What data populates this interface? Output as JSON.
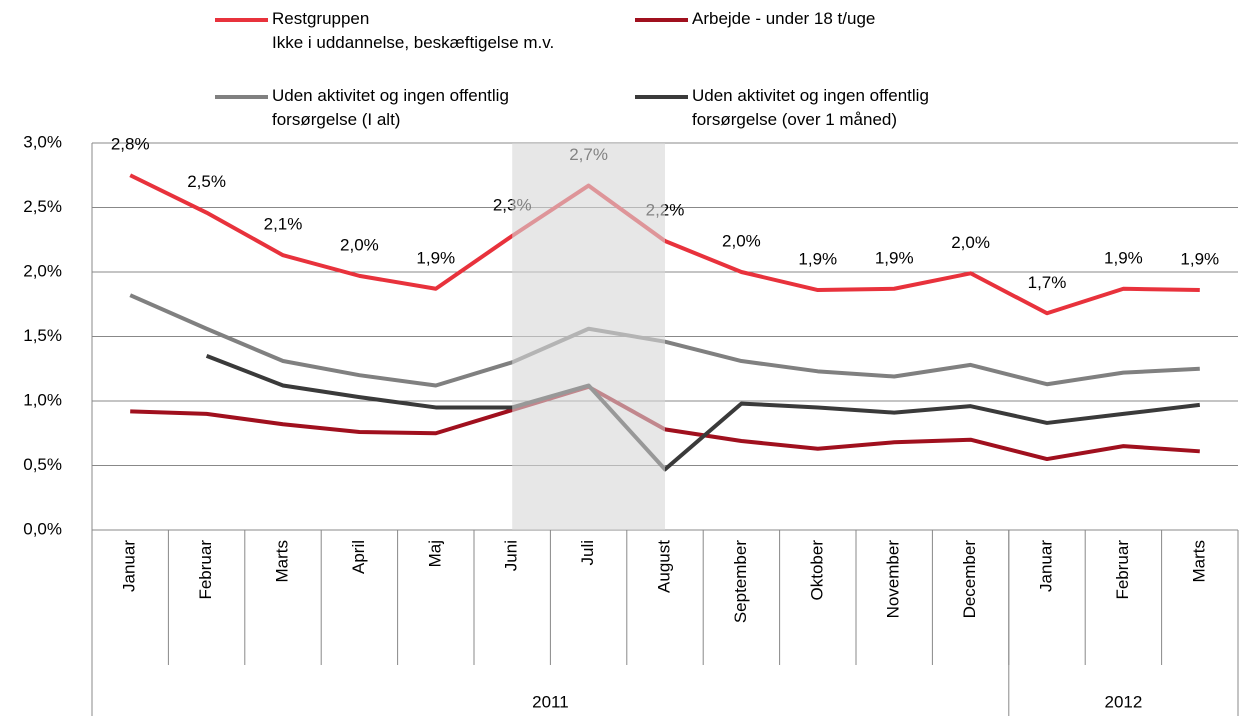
{
  "chart_data": {
    "type": "line",
    "categories": [
      "Januar",
      "Februar",
      "Marts",
      "April",
      "Maj",
      "Juni",
      "Juli",
      "August",
      "September",
      "Oktober",
      "November",
      "December",
      "Januar",
      "Februar",
      "Marts"
    ],
    "x_groups": [
      {
        "label": "2011",
        "span": 12
      },
      {
        "label": "2012",
        "span": 3
      }
    ],
    "ylim": [
      0,
      3
    ],
    "yticks": [
      {
        "value": 0,
        "label": "0,0%"
      },
      {
        "value": 0.5,
        "label": "0,5%"
      },
      {
        "value": 1,
        "label": "1,0%"
      },
      {
        "value": 1.5,
        "label": "1,5%"
      },
      {
        "value": 2,
        "label": "2,0%"
      },
      {
        "value": 2.5,
        "label": "2,5%"
      },
      {
        "value": 3,
        "label": "3,0%"
      }
    ],
    "grid": true,
    "series": [
      {
        "name": "Restgruppen\nIkke i uddannelse, beskæftigelse m.v.",
        "color": "#e8323c",
        "values": [
          2.75,
          2.46,
          2.13,
          1.97,
          1.87,
          2.28,
          2.67,
          2.24,
          2.0,
          1.86,
          1.87,
          1.99,
          1.68,
          1.87,
          1.86
        ],
        "value_labels": [
          "2,8%",
          "2,5%",
          "2,1%",
          "2,0%",
          "1,9%",
          "2,3%",
          "2,7%",
          "2,2%",
          "2,0%",
          "1,9%",
          "1,9%",
          "2,0%",
          "1,7%",
          "1,9%",
          "1,9%"
        ]
      },
      {
        "name": "Arbejde - under 18 t/uge",
        "color": "#a0101e",
        "values": [
          0.92,
          0.9,
          0.82,
          0.76,
          0.75,
          0.93,
          1.11,
          0.78,
          0.69,
          0.63,
          0.68,
          0.7,
          0.55,
          0.65,
          0.61
        ]
      },
      {
        "name": "Uden aktivitet og ingen offentlig\nforsørgelse (I alt)",
        "color": "#808080",
        "values": [
          1.82,
          1.56,
          1.31,
          1.2,
          1.12,
          1.3,
          1.56,
          1.46,
          1.31,
          1.23,
          1.19,
          1.28,
          1.13,
          1.22,
          1.25
        ]
      },
      {
        "name": "Uden aktivitet og ingen offentlig\nforsørgelse (over 1 måned)",
        "color": "#3a3a3a",
        "values": [
          null,
          1.35,
          1.12,
          1.03,
          0.95,
          0.95,
          1.12,
          0.47,
          0.98,
          0.95,
          0.91,
          0.96,
          0.83,
          0.9,
          0.97
        ]
      }
    ]
  }
}
